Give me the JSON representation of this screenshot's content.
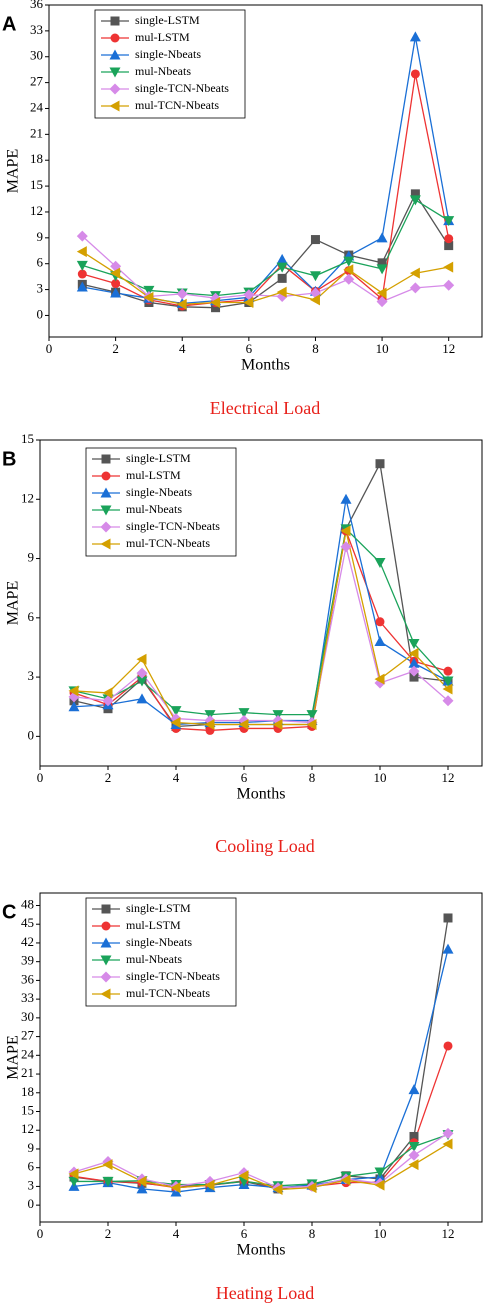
{
  "chart_data": [
    {
      "type": "line",
      "label": "A",
      "caption": "Electrical Load",
      "xlabel": "Months",
      "ylabel": "MAPE",
      "x": [
        1,
        2,
        3,
        4,
        5,
        6,
        7,
        8,
        9,
        10,
        11,
        12
      ],
      "xlim": [
        0,
        13
      ],
      "xticks": [
        0,
        2,
        4,
        6,
        8,
        10,
        12
      ],
      "ylim": [
        -2.5,
        36
      ],
      "yticks": [
        0,
        3,
        6,
        9,
        12,
        15,
        18,
        21,
        24,
        27,
        30,
        33,
        36
      ],
      "series": [
        {
          "name": "single-LSTM",
          "color": "#555555",
          "marker": "square",
          "values": [
            3.6,
            2.7,
            1.5,
            1.0,
            0.9,
            1.5,
            4.3,
            8.8,
            7.0,
            6.1,
            14.1,
            8.1
          ]
        },
        {
          "name": "mul-LSTM",
          "color": "#ee3333",
          "marker": "circle",
          "values": [
            4.8,
            3.7,
            1.8,
            1.1,
            1.5,
            1.8,
            5.9,
            2.8,
            5.2,
            1.9,
            28.0,
            8.9
          ]
        },
        {
          "name": "single-Nbeats",
          "color": "#1a6fd6",
          "marker": "triangle-up",
          "values": [
            3.3,
            2.6,
            2.0,
            1.4,
            1.7,
            2.1,
            6.5,
            2.8,
            6.9,
            9.0,
            32.3,
            11.0
          ]
        },
        {
          "name": "mul-Nbeats",
          "color": "#1aa35a",
          "marker": "triangle-down",
          "values": [
            5.8,
            4.6,
            2.9,
            2.6,
            2.3,
            2.7,
            5.6,
            4.6,
            6.3,
            5.4,
            13.4,
            11.0
          ]
        },
        {
          "name": "single-TCN-Nbeats",
          "color": "#d68ae8",
          "marker": "diamond",
          "values": [
            9.2,
            5.7,
            2.2,
            2.5,
            2.0,
            2.4,
            2.2,
            2.6,
            4.2,
            1.6,
            3.2,
            3.5
          ]
        },
        {
          "name": "mul-TCN-Nbeats",
          "color": "#d4a000",
          "marker": "triangle-left",
          "values": [
            7.4,
            4.9,
            2.1,
            1.3,
            1.5,
            1.5,
            2.7,
            1.8,
            5.3,
            2.6,
            4.9,
            5.6
          ]
        }
      ]
    },
    {
      "type": "line",
      "label": "B",
      "caption": "Cooling Load",
      "xlabel": "Months",
      "ylabel": "MAPE",
      "x": [
        1,
        2,
        3,
        4,
        5,
        6,
        7,
        8,
        9,
        10,
        11,
        12
      ],
      "xlim": [
        0,
        13
      ],
      "xticks": [
        0,
        2,
        4,
        6,
        8,
        10,
        12
      ],
      "ylim": [
        -1.5,
        15
      ],
      "yticks": [
        0,
        3,
        6,
        9,
        12,
        15
      ],
      "series": [
        {
          "name": "single-LSTM",
          "color": "#555555",
          "marker": "square",
          "values": [
            1.8,
            1.4,
            2.9,
            0.5,
            0.6,
            0.6,
            0.6,
            0.6,
            10.5,
            13.8,
            3.0,
            2.8
          ]
        },
        {
          "name": "mul-LSTM",
          "color": "#ee3333",
          "marker": "circle",
          "values": [
            2.2,
            1.6,
            3.0,
            0.4,
            0.3,
            0.4,
            0.4,
            0.5,
            10.4,
            5.8,
            3.8,
            3.3
          ]
        },
        {
          "name": "single-Nbeats",
          "color": "#1a6fd6",
          "marker": "triangle-up",
          "values": [
            1.5,
            1.6,
            1.9,
            0.6,
            0.7,
            0.7,
            0.8,
            0.8,
            12.0,
            4.8,
            3.7,
            2.8
          ]
        },
        {
          "name": "mul-Nbeats",
          "color": "#1aa35a",
          "marker": "triangle-down",
          "values": [
            2.3,
            1.9,
            2.8,
            1.3,
            1.1,
            1.2,
            1.1,
            1.1,
            10.5,
            8.8,
            4.7,
            2.8
          ]
        },
        {
          "name": "single-TCN-Nbeats",
          "color": "#d68ae8",
          "marker": "diamond",
          "values": [
            2.0,
            1.8,
            3.2,
            0.9,
            0.8,
            0.8,
            0.8,
            0.7,
            9.6,
            2.7,
            3.3,
            1.8
          ]
        },
        {
          "name": "mul-TCN-Nbeats",
          "color": "#d4a000",
          "marker": "triangle-left",
          "values": [
            2.3,
            2.2,
            3.9,
            0.7,
            0.6,
            0.6,
            0.6,
            0.6,
            10.4,
            2.9,
            4.2,
            2.4
          ]
        }
      ]
    },
    {
      "type": "line",
      "label": "C",
      "caption": "Heating Load",
      "xlabel": "Months",
      "ylabel": "MAPE",
      "x": [
        1,
        2,
        3,
        4,
        5,
        6,
        7,
        8,
        9,
        10,
        11,
        12
      ],
      "xlim": [
        0,
        13
      ],
      "xticks": [
        0,
        2,
        4,
        6,
        8,
        10,
        12
      ],
      "ylim": [
        -2.7,
        50
      ],
      "yticks": [
        0,
        3,
        6,
        9,
        12,
        15,
        18,
        21,
        24,
        27,
        30,
        33,
        36,
        39,
        42,
        45,
        48
      ],
      "series": [
        {
          "name": "single-LSTM",
          "color": "#555555",
          "marker": "square",
          "values": [
            4.5,
            3.8,
            3.5,
            3.0,
            3.2,
            3.8,
            2.6,
            3.3,
            4.7,
            4.2,
            11.0,
            46.0
          ]
        },
        {
          "name": "mul-LSTM",
          "color": "#ee3333",
          "marker": "circle",
          "values": [
            4.6,
            3.8,
            3.6,
            2.8,
            3.2,
            3.9,
            2.8,
            3.0,
            3.6,
            3.7,
            10.0,
            25.5
          ]
        },
        {
          "name": "single-Nbeats",
          "color": "#1a6fd6",
          "marker": "triangle-up",
          "values": [
            3.0,
            3.6,
            2.6,
            2.1,
            2.8,
            3.3,
            2.8,
            3.2,
            4.1,
            4.5,
            18.5,
            41.0
          ]
        },
        {
          "name": "mul-Nbeats",
          "color": "#1aa35a",
          "marker": "triangle-down",
          "values": [
            3.8,
            3.8,
            3.9,
            3.3,
            3.3,
            3.8,
            3.1,
            3.4,
            4.6,
            5.3,
            9.4,
            11.3
          ]
        },
        {
          "name": "single-TCN-Nbeats",
          "color": "#d68ae8",
          "marker": "diamond",
          "values": [
            5.3,
            7.0,
            4.2,
            3.0,
            3.8,
            5.2,
            2.8,
            3.0,
            4.2,
            3.5,
            8.0,
            11.5
          ]
        },
        {
          "name": "mul-TCN-Nbeats",
          "color": "#d4a000",
          "marker": "triangle-left",
          "values": [
            5.0,
            6.5,
            3.8,
            2.8,
            3.2,
            4.7,
            2.5,
            2.8,
            4.0,
            3.2,
            6.5,
            9.8
          ]
        }
      ]
    }
  ]
}
